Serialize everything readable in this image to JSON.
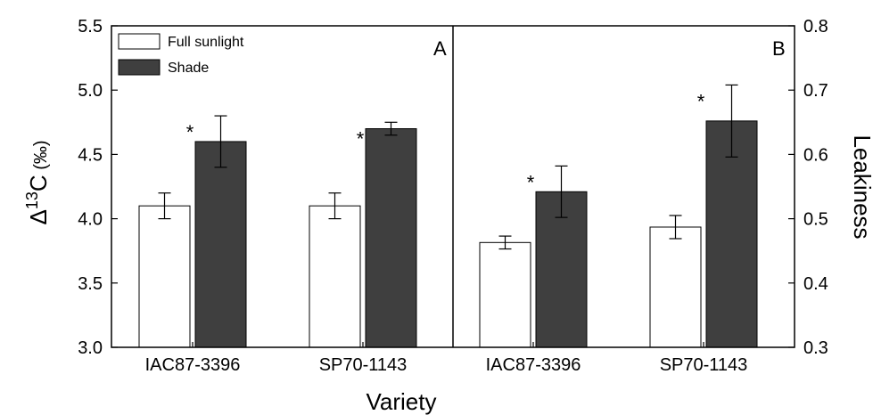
{
  "chart_data": [
    {
      "panel": "A",
      "type": "bar",
      "categories": [
        "IAC87-3396",
        "SP70-1143"
      ],
      "series": [
        {
          "name": "Full sunlight",
          "values": [
            4.1,
            4.1
          ],
          "errors": [
            0.1,
            0.1
          ],
          "significant": [
            false,
            false
          ],
          "color": "#ffffff"
        },
        {
          "name": "Shade",
          "values": [
            4.6,
            4.7
          ],
          "errors": [
            0.2,
            0.05
          ],
          "significant": [
            true,
            true
          ],
          "color": "#3f3f3f"
        }
      ],
      "ylabel": {
        "prefix": "Δ",
        "sup": "13",
        "main": "C",
        "unit": " (‰)"
      },
      "ylim": [
        3.0,
        5.5
      ],
      "yticks": [
        "3.0",
        "3.5",
        "4.0",
        "4.5",
        "5.0",
        "5.5"
      ],
      "legend": "top-left"
    },
    {
      "panel": "B",
      "type": "bar",
      "categories": [
        "IAC87-3396",
        "SP70-1143"
      ],
      "series": [
        {
          "name": "Full sunlight",
          "values": [
            0.463,
            0.487
          ],
          "errors": [
            0.01,
            0.018
          ],
          "significant": [
            false,
            false
          ],
          "color": "#ffffff"
        },
        {
          "name": "Shade",
          "values": [
            0.542,
            0.652
          ],
          "errors": [
            0.04,
            0.056
          ],
          "significant": [
            true,
            true
          ],
          "color": "#3f3f3f"
        }
      ],
      "ylabel": "Leakiness",
      "ylim": [
        0.3,
        0.8
      ],
      "yticks": [
        "0.3",
        "0.4",
        "0.5",
        "0.6",
        "0.7",
        "0.8"
      ]
    }
  ],
  "xlabel": "Variety",
  "legend": [
    "Full sunlight",
    "Shade"
  ],
  "significance_marker": "*"
}
